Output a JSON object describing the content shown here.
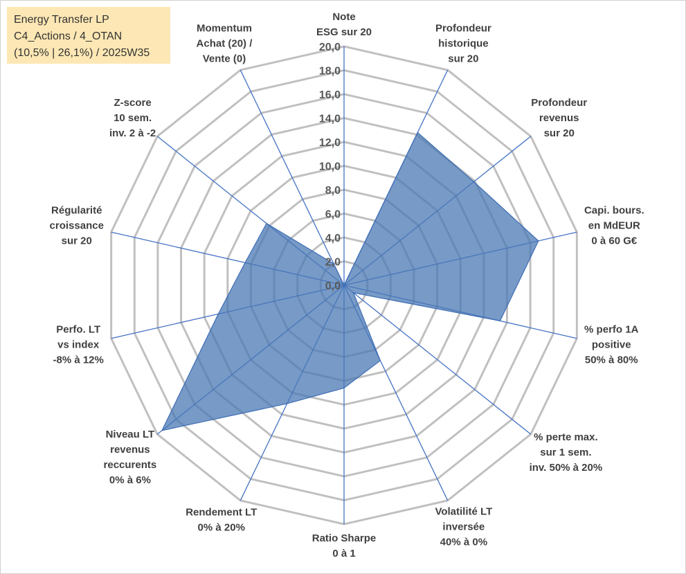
{
  "chart_data": {
    "type": "radar",
    "title_lines": [
      "Energy Transfer LP",
      "C4_Actions / 4_OTAN",
      "(10,5% | 26,1%) / 2025W35"
    ],
    "categories": [
      "Note\nESG sur 20",
      "Profondeur\nhistorique\nsur 20",
      "Profondeur\nrevenus\nsur 20",
      "Capi. bours.\nen MdEUR\n0 à 60 G€",
      "% perfo 1A\npositive\n50% à 80%",
      "% perte max.\nsur 1 sem.\ninv. 50% à 20%",
      "Volatilité LT\ninversée\n40% à 0%",
      "Ratio Sharpe\n0 à 1",
      "Rendement LT\n0% à 20%",
      "Niveau LT\nrevenus\nreccurents\n0% à 6%",
      "Perfo. LT\nvs index\n-8% à 12%",
      "Régularité\ncroissance\nsur 20",
      "Z-score\n10 sem.\ninv. 2 à -2",
      "Momentum\nAchat (20) /\nVente (0)"
    ],
    "values": [
      0,
      14.2,
      13.9,
      16.7,
      13.4,
      1.0,
      7.0,
      8.6,
      11.0,
      19.5,
      10.8,
      8.5,
      8.3,
      2.0
    ],
    "color": "#4a78b4",
    "line_color": "#3d6db5",
    "spoke_color": "#4472c4",
    "grid_color": "#c0c0c0",
    "ylim": [
      0,
      20
    ],
    "yticks": [
      {
        "value": 0,
        "label": "0,0"
      },
      {
        "value": 2,
        "label": "2,0"
      },
      {
        "value": 4,
        "label": "4,0"
      },
      {
        "value": 6,
        "label": "6,0"
      },
      {
        "value": 8,
        "label": "8,0"
      },
      {
        "value": 10,
        "label": "10,0"
      },
      {
        "value": 12,
        "label": "12,0"
      },
      {
        "value": 14,
        "label": "14,0"
      },
      {
        "value": 16,
        "label": "16,0"
      },
      {
        "value": 18,
        "label": "18,0"
      },
      {
        "value": 20,
        "label": "20,0"
      }
    ],
    "grid": true
  }
}
